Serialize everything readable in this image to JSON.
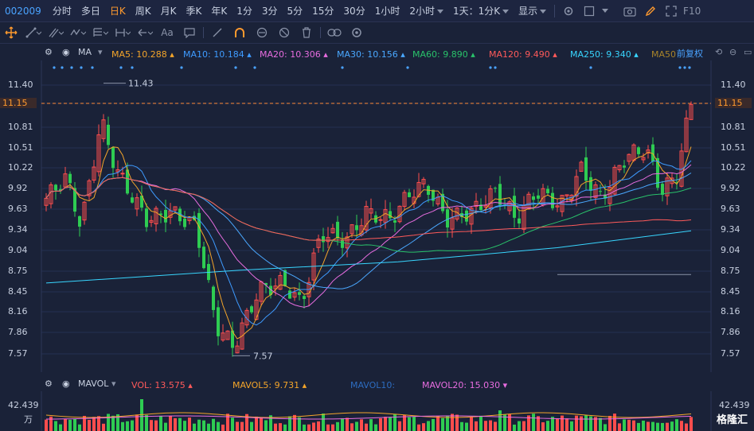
{
  "stock_code": "002009",
  "periods": [
    {
      "label": "分时",
      "active": false,
      "dropdown": false
    },
    {
      "label": "多日",
      "active": false,
      "dropdown": false
    },
    {
      "label": "日K",
      "active": true,
      "dropdown": false
    },
    {
      "label": "周K",
      "active": false,
      "dropdown": false
    },
    {
      "label": "月K",
      "active": false,
      "dropdown": false
    },
    {
      "label": "季K",
      "active": false,
      "dropdown": false
    },
    {
      "label": "年K",
      "active": false,
      "dropdown": false
    },
    {
      "label": "1分",
      "active": false,
      "dropdown": false
    },
    {
      "label": "3分",
      "active": false,
      "dropdown": false
    },
    {
      "label": "5分",
      "active": false,
      "dropdown": false
    },
    {
      "label": "15分",
      "active": false,
      "dropdown": false
    },
    {
      "label": "30分",
      "active": false,
      "dropdown": false
    },
    {
      "label": "1小时",
      "active": false,
      "dropdown": false
    },
    {
      "label": "2小时",
      "active": false,
      "dropdown": true
    },
    {
      "label": "1天：1分K",
      "active": false,
      "dropdown": true
    },
    {
      "label": "显示",
      "active": false,
      "dropdown": true
    }
  ],
  "ma_indicator": {
    "name": "MA",
    "items": [
      {
        "label": "MA5: 10.288",
        "color": "#f4a52a"
      },
      {
        "label": "MA10: 10.184",
        "color": "#3e9bff"
      },
      {
        "label": "MA20: 10.306",
        "color": "#e86de0"
      },
      {
        "label": "MA30: 10.156",
        "color": "#4aa8ff"
      },
      {
        "label": "MA60: 9.890",
        "color": "#29c26a"
      },
      {
        "label": "MA120: 9.490",
        "color": "#ff5a5a"
      },
      {
        "label": "MA250: 9.340",
        "color": "#38d6ff"
      },
      {
        "label": "MA50",
        "color": "#a8842a"
      }
    ],
    "adjust_label": "前复权"
  },
  "price_axis": {
    "ticks": [
      "11.40",
      "11.15",
      "10.81",
      "10.51",
      "10.22",
      "9.92",
      "9.63",
      "9.34",
      "9.04",
      "8.75",
      "8.45",
      "8.16",
      "7.86",
      "7.57"
    ],
    "current_price": "11.15"
  },
  "annotations": {
    "high": "11.43",
    "low": "7.57"
  },
  "volume_indicator": {
    "name": "MAVOL",
    "items": [
      {
        "label": "VOL: 13.575",
        "color": "#ff5a5a"
      },
      {
        "label": "MAVOL5: 9.731",
        "color": "#f4a52a"
      },
      {
        "label": "MAVOL10:",
        "color": "#2d6cc0"
      },
      {
        "label": "MAVOL20: 15.030",
        "color": "#e86de0"
      }
    ],
    "axis_top": "42.439",
    "axis_unit": "万"
  },
  "watermark": "格隆汇",
  "colors": {
    "up": "#ff4d4d",
    "down": "#2ecc52",
    "accent": "#ff9a2e",
    "bg": "#1a2238"
  }
}
